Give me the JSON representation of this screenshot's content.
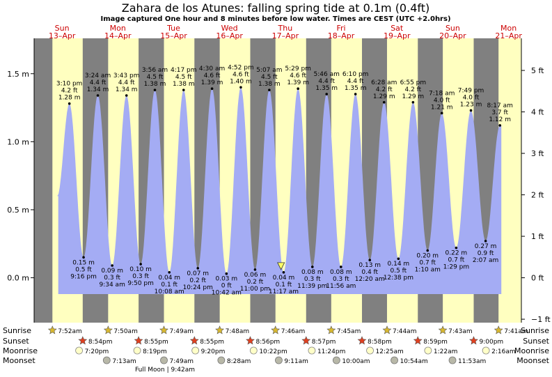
{
  "title": "Zahara de los Atunes: falling  spring tide at 0.1m (0.4ft)",
  "subtitle": "Image captured One hour and 8 minutes before low water. Times are CEST (UTC +2.0hrs)",
  "colors": {
    "night": "#808080",
    "day": "#ffffc0",
    "tide": "#a4acf4",
    "day_label": "#cc0000"
  },
  "chart_data": {
    "type": "area",
    "ylabel_left": "m",
    "ylabel_right": "ft",
    "ylim_m": [
      -0.33,
      1.76
    ],
    "left_ticks": [
      {
        "v": 1.5,
        "label": "1.5 m"
      },
      {
        "v": 1.0,
        "label": "1.0 m"
      },
      {
        "v": 0.5,
        "label": "0.5 m"
      },
      {
        "v": 0.0,
        "label": "0.0 m"
      }
    ],
    "right_ticks": [
      {
        "v": 5,
        "label": "5 ft"
      },
      {
        "v": 4,
        "label": "4 ft"
      },
      {
        "v": 3,
        "label": "3 ft"
      },
      {
        "v": 2,
        "label": "2 ft"
      },
      {
        "v": 1,
        "label": "1 ft"
      },
      {
        "v": 0,
        "label": "0 ft"
      },
      {
        "v": -1,
        "label": "−1 ft"
      }
    ],
    "start": "2025-04-13 00:00",
    "days": [
      {
        "name": "Sun",
        "date": "13–Apr"
      },
      {
        "name": "Mon",
        "date": "14–Apr"
      },
      {
        "name": "Tue",
        "date": "15–Apr"
      },
      {
        "name": "Wed",
        "date": "16–Apr"
      },
      {
        "name": "Thu",
        "date": "17–Apr"
      },
      {
        "name": "Fri",
        "date": "18–Apr"
      },
      {
        "name": "Sat",
        "date": "19–Apr"
      },
      {
        "name": "Sun",
        "date": "20–Apr"
      },
      {
        "name": "Mon",
        "date": "21–Apr"
      }
    ],
    "tides": [
      {
        "time": "3:10 pm",
        "d": 0,
        "h": 15.17,
        "m": 1.28,
        "ft": "4.2 ft",
        "mlabel": "1.28 m",
        "type": "high"
      },
      {
        "time": "9:16 pm",
        "d": 0,
        "h": 21.27,
        "m": 0.15,
        "ft": "0.5 ft",
        "mlabel": "0.15 m",
        "type": "low"
      },
      {
        "time": "3:24 am",
        "d": 1,
        "h": 3.4,
        "m": 1.34,
        "ft": "4.4 ft",
        "mlabel": "1.34 m",
        "type": "high"
      },
      {
        "time": "9:34 am",
        "d": 1,
        "h": 9.57,
        "m": 0.09,
        "ft": "0.3 ft",
        "mlabel": "0.09 m",
        "type": "low"
      },
      {
        "time": "3:43 pm",
        "d": 1,
        "h": 15.72,
        "m": 1.34,
        "ft": "4.4 ft",
        "mlabel": "1.34 m",
        "type": "high"
      },
      {
        "time": "9:50 pm",
        "d": 1,
        "h": 21.83,
        "m": 0.1,
        "ft": "0.3 ft",
        "mlabel": "0.10 m",
        "type": "low"
      },
      {
        "time": "3:56 am",
        "d": 2,
        "h": 3.93,
        "m": 1.38,
        "ft": "4.5 ft",
        "mlabel": "1.38 m",
        "type": "high"
      },
      {
        "time": "10:08 am",
        "d": 2,
        "h": 10.13,
        "m": 0.04,
        "ft": "0.1 ft",
        "mlabel": "0.04 m",
        "type": "low"
      },
      {
        "time": "4:17 pm",
        "d": 2,
        "h": 16.28,
        "m": 1.38,
        "ft": "4.5 ft",
        "mlabel": "1.38 m",
        "type": "high"
      },
      {
        "time": "10:24 pm",
        "d": 2,
        "h": 22.4,
        "m": 0.07,
        "ft": "0.2 ft",
        "mlabel": "0.07 m",
        "type": "low"
      },
      {
        "time": "4:30 am",
        "d": 3,
        "h": 4.5,
        "m": 1.39,
        "ft": "4.6 ft",
        "mlabel": "1.39 m",
        "type": "high"
      },
      {
        "time": "10:42 am",
        "d": 3,
        "h": 10.7,
        "m": 0.03,
        "ft": "0 ft",
        "mlabel": "0.03 m",
        "type": "low"
      },
      {
        "time": "4:52 pm",
        "d": 3,
        "h": 16.87,
        "m": 1.4,
        "ft": "4.6 ft",
        "mlabel": "1.40 m",
        "type": "high"
      },
      {
        "time": "11:00 pm",
        "d": 3,
        "h": 23.0,
        "m": 0.06,
        "ft": "0.2 ft",
        "mlabel": "0.06 m",
        "type": "low"
      },
      {
        "time": "5:07 am",
        "d": 4,
        "h": 5.12,
        "m": 1.38,
        "ft": "4.5 ft",
        "mlabel": "1.38 m",
        "type": "high"
      },
      {
        "time": "11:17 am",
        "d": 4,
        "h": 11.28,
        "m": 0.04,
        "ft": "0.1 ft",
        "mlabel": "0.04 m",
        "type": "low"
      },
      {
        "time": "5:29 pm",
        "d": 4,
        "h": 17.48,
        "m": 1.39,
        "ft": "4.6 ft",
        "mlabel": "1.39 m",
        "type": "high"
      },
      {
        "time": "11:39 pm",
        "d": 4,
        "h": 23.65,
        "m": 0.08,
        "ft": "0.3 ft",
        "mlabel": "0.08 m",
        "type": "low"
      },
      {
        "time": "5:46 am",
        "d": 5,
        "h": 5.77,
        "m": 1.35,
        "ft": "4.4 ft",
        "mlabel": "1.35 m",
        "type": "high"
      },
      {
        "time": "11:56 am",
        "d": 5,
        "h": 11.93,
        "m": 0.08,
        "ft": "0.3 ft",
        "mlabel": "0.08 m",
        "type": "low"
      },
      {
        "time": "6:10 pm",
        "d": 5,
        "h": 18.17,
        "m": 1.35,
        "ft": "4.4 ft",
        "mlabel": "1.35 m",
        "type": "high"
      },
      {
        "time": "12:20 am",
        "d": 6,
        "h": 0.33,
        "m": 0.13,
        "ft": "0.4 ft",
        "mlabel": "0.13 m",
        "type": "low"
      },
      {
        "time": "6:28 am",
        "d": 6,
        "h": 6.47,
        "m": 1.29,
        "ft": "4.2 ft",
        "mlabel": "1.29 m",
        "type": "high"
      },
      {
        "time": "12:38 pm",
        "d": 6,
        "h": 12.63,
        "m": 0.14,
        "ft": "0.5 ft",
        "mlabel": "0.14 m",
        "type": "low"
      },
      {
        "time": "6:55 pm",
        "d": 6,
        "h": 18.92,
        "m": 1.29,
        "ft": "4.2 ft",
        "mlabel": "1.29 m",
        "type": "high"
      },
      {
        "time": "1:10 am",
        "d": 7,
        "h": 1.17,
        "m": 0.2,
        "ft": "0.7 ft",
        "mlabel": "0.20 m",
        "type": "low"
      },
      {
        "time": "7:18 am",
        "d": 7,
        "h": 7.3,
        "m": 1.21,
        "ft": "4.0 ft",
        "mlabel": "1.21 m",
        "type": "high"
      },
      {
        "time": "1:29 pm",
        "d": 7,
        "h": 13.48,
        "m": 0.22,
        "ft": "0.7 ft",
        "mlabel": "0.22 m",
        "type": "low"
      },
      {
        "time": "7:49 pm",
        "d": 7,
        "h": 19.82,
        "m": 1.23,
        "ft": "4.0 ft",
        "mlabel": "1.23 m",
        "type": "high"
      },
      {
        "time": "2:07 am",
        "d": 8,
        "h": 2.12,
        "m": 0.27,
        "ft": "0.9 ft",
        "mlabel": "0.27 m",
        "type": "low"
      },
      {
        "time": "8:17 am",
        "d": 8,
        "h": 8.28,
        "m": 1.12,
        "ft": "3.7 ft",
        "mlabel": "1.12 m",
        "type": "high"
      }
    ],
    "sunrise": [
      {
        "d": 0,
        "h": 7.87,
        "label": "7:52am"
      },
      {
        "d": 1,
        "h": 7.83,
        "label": "7:50am"
      },
      {
        "d": 2,
        "h": 7.82,
        "label": "7:49am"
      },
      {
        "d": 3,
        "h": 7.8,
        "label": "7:48am"
      },
      {
        "d": 4,
        "h": 7.77,
        "label": "7:46am"
      },
      {
        "d": 5,
        "h": 7.75,
        "label": "7:45am"
      },
      {
        "d": 6,
        "h": 7.73,
        "label": "7:44am"
      },
      {
        "d": 7,
        "h": 7.72,
        "label": "7:43am"
      },
      {
        "d": 8,
        "h": 7.68,
        "label": "7:41am"
      }
    ],
    "sunset": [
      {
        "d": 0,
        "h": 20.9,
        "label": "8:54pm"
      },
      {
        "d": 1,
        "h": 20.92,
        "label": "8:55pm"
      },
      {
        "d": 2,
        "h": 20.92,
        "label": "8:55pm"
      },
      {
        "d": 3,
        "h": 20.93,
        "label": "8:56pm"
      },
      {
        "d": 4,
        "h": 20.95,
        "label": "8:57pm"
      },
      {
        "d": 5,
        "h": 20.97,
        "label": "8:58pm"
      },
      {
        "d": 6,
        "h": 20.98,
        "label": "8:59pm"
      },
      {
        "d": 7,
        "h": 21.0,
        "label": "9:00pm"
      }
    ],
    "moonrise": [
      {
        "d": 0,
        "h": 19.33,
        "label": "7:20pm"
      },
      {
        "d": 1,
        "h": 20.32,
        "label": "8:19pm"
      },
      {
        "d": 2,
        "h": 21.33,
        "label": "9:20pm"
      },
      {
        "d": 3,
        "h": 22.37,
        "label": "10:22pm"
      },
      {
        "d": 4,
        "h": 23.4,
        "label": "11:24pm"
      },
      {
        "d": 6,
        "h": 0.42,
        "label": "12:25am"
      },
      {
        "d": 7,
        "h": 1.37,
        "label": "1:22am"
      },
      {
        "d": 8,
        "h": 2.27,
        "label": "2:16am"
      }
    ],
    "moonset": [
      {
        "d": 1,
        "h": 7.22,
        "label": "7:13am"
      },
      {
        "d": 2,
        "h": 7.82,
        "label": "7:49am"
      },
      {
        "d": 3,
        "h": 8.47,
        "label": "8:28am"
      },
      {
        "d": 4,
        "h": 9.18,
        "label": "9:11am"
      },
      {
        "d": 5,
        "h": 10.0,
        "label": "10:00am"
      },
      {
        "d": 6,
        "h": 10.9,
        "label": "10:54am"
      },
      {
        "d": 7,
        "h": 11.88,
        "label": "11:53am"
      }
    ],
    "now": {
      "d": 4,
      "h": 10.15
    },
    "annotation": "Full Moon | 9:42am"
  },
  "rows": {
    "sunrise": "Sunrise",
    "sunset": "Sunset",
    "moonrise": "Moonrise",
    "moonset": "Moonset"
  }
}
